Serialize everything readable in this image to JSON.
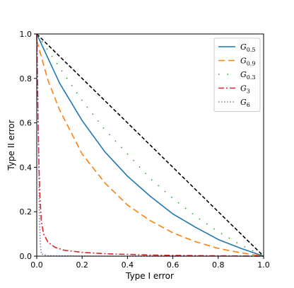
{
  "chart_data": {
    "type": "line",
    "title": "",
    "xlabel": "Type I error",
    "ylabel": "Type II error",
    "xlim": [
      0,
      1
    ],
    "ylim": [
      0,
      1
    ],
    "grid": false,
    "legend_position": "top-right",
    "x_ticks": [
      "0.0",
      "0.2",
      "0.4",
      "0.6",
      "0.8",
      "1.0"
    ],
    "y_ticks": [
      "0.0",
      "0.2",
      "0.4",
      "0.6",
      "0.8",
      "1.0"
    ],
    "reference_line": {
      "style": "dashed",
      "color": "#000000",
      "x": [
        0,
        1
      ],
      "y": [
        1,
        0
      ]
    },
    "series": [
      {
        "name": "G",
        "sub": "0.5",
        "color": "#1f77b4",
        "dash": "",
        "x": [
          0,
          0.1,
          0.2,
          0.3,
          0.4,
          0.5,
          0.6,
          0.7,
          0.8,
          0.9,
          1.0
        ],
        "y": [
          1.0,
          0.78,
          0.61,
          0.47,
          0.36,
          0.27,
          0.19,
          0.13,
          0.075,
          0.035,
          0.0
        ]
      },
      {
        "name": "G",
        "sub": "0.9",
        "color": "#ff7f0e",
        "dash": "9,5",
        "x": [
          0,
          0.05,
          0.1,
          0.2,
          0.3,
          0.4,
          0.5,
          0.6,
          0.7,
          0.8,
          0.9,
          1.0
        ],
        "y": [
          0.97,
          0.79,
          0.66,
          0.46,
          0.33,
          0.23,
          0.16,
          0.105,
          0.065,
          0.035,
          0.015,
          0.0
        ]
      },
      {
        "name": "G",
        "sub": "0.3",
        "color": "#2ca02c",
        "dash": "1.5,11",
        "x": [
          0,
          0.1,
          0.2,
          0.3,
          0.4,
          0.5,
          0.6,
          0.7,
          0.8,
          0.9,
          1.0
        ],
        "y": [
          1.0,
          0.85,
          0.7,
          0.57,
          0.46,
          0.35,
          0.26,
          0.18,
          0.11,
          0.05,
          0.0
        ]
      },
      {
        "name": "G",
        "sub": "3",
        "color": "#d62728",
        "dash": "8,3,2,3",
        "x": [
          0,
          0.003,
          0.006,
          0.01,
          0.014,
          0.02,
          0.03,
          0.05,
          0.08,
          0.12,
          0.2,
          0.3,
          0.5,
          0.7,
          1.0
        ],
        "y": [
          1.0,
          0.82,
          0.6,
          0.4,
          0.27,
          0.16,
          0.1,
          0.062,
          0.04,
          0.027,
          0.017,
          0.011,
          0.005,
          0.0025,
          0.0
        ]
      },
      {
        "name": "G",
        "sub": "6",
        "color": "#9467bd",
        "dash": "1.5,2.5",
        "x": [
          0,
          0.004,
          0.008,
          0.012,
          0.016,
          0.02,
          0.05,
          0.2,
          0.5,
          1.0
        ],
        "y": [
          1.0,
          0.78,
          0.45,
          0.17,
          0.05,
          0.01,
          0.002,
          0.0005,
          0.0001,
          0.0
        ]
      }
    ]
  }
}
